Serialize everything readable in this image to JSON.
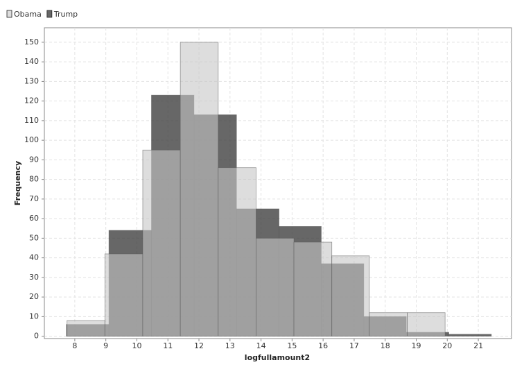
{
  "chart_data": {
    "type": "histogram",
    "x_label": "logfullamount2",
    "y_label": "Frequency",
    "xlim": [
      7.02,
      22.07
    ],
    "ylim": [
      -1.2,
      157.4
    ],
    "xticks": [
      8,
      9,
      10,
      11,
      12,
      13,
      14,
      15,
      16,
      17,
      18,
      19,
      20,
      21
    ],
    "yticks": [
      0,
      10,
      20,
      30,
      40,
      50,
      60,
      70,
      80,
      90,
      100,
      110,
      120,
      130,
      140,
      150
    ],
    "grid": true,
    "legend": "top-left",
    "series": [
      {
        "name": "Trump",
        "color": "rgba(60,60,60,0.78)",
        "bins": [
          7.73,
          9.1,
          10.47,
          11.84,
          13.21,
          14.58,
          15.94,
          17.31,
          18.68,
          20.05,
          21.42
        ],
        "values": [
          6,
          54,
          123,
          113,
          65,
          56,
          37,
          10,
          2,
          1
        ]
      },
      {
        "name": "Obama",
        "color": "rgba(199,199,199,0.6)",
        "bins": [
          7.75,
          8.97,
          10.19,
          11.4,
          12.62,
          13.84,
          15.06,
          16.28,
          17.49,
          18.71,
          19.93
        ],
        "values": [
          8,
          42,
          95,
          150,
          86,
          50,
          48,
          41,
          12,
          12
        ]
      }
    ]
  }
}
